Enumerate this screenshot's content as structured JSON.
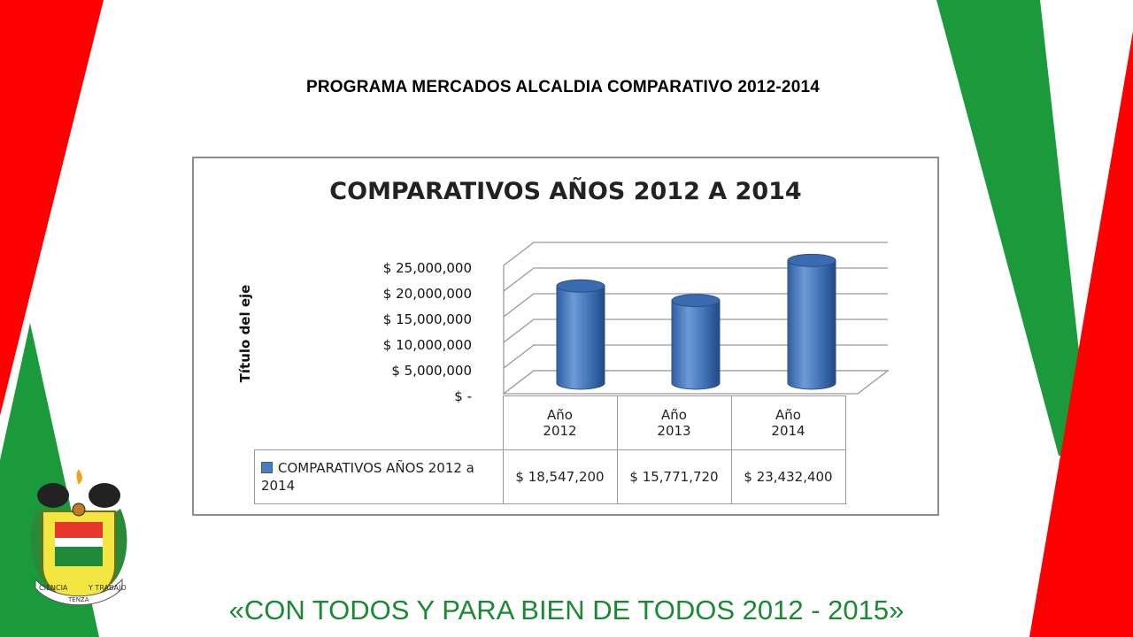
{
  "slide": {
    "title": "PROGRAMA MERCADOS ALCALDIA COMPARATIVO 2012-2014",
    "footer": "«CON TODOS Y PARA BIEN DE TODOS 2012 - 2015»",
    "colors": {
      "red": "#ff0000",
      "green": "#1a9a3a",
      "footer_green": "#1a8a32"
    }
  },
  "logo": {
    "icon": "municipal-coat-of-arms",
    "motto_left": "CIENCIA",
    "motto_right": "Y TRABAJO",
    "bottom_text": "TENZA"
  },
  "chart_data": {
    "type": "bar",
    "title": "COMPARATIVOS AÑOS 2012 A 2014",
    "ylabel": "Título del eje",
    "categories": [
      "Año\n2012",
      "Año\n2013",
      "Año\n2014"
    ],
    "categories_lines": [
      [
        "Año",
        "2012"
      ],
      [
        "Año",
        "2013"
      ],
      [
        "Año",
        "2014"
      ]
    ],
    "series": [
      {
        "name": "COMPARATIVOS AÑOS 2012 a 2014",
        "values": [
          18547200,
          15771720,
          23432400
        ],
        "labels": [
          "$ 18,547,200",
          "$ 15,771,720",
          "$ 23,432,400"
        ],
        "color": "#4a7cc0"
      }
    ],
    "yticks": [
      25000000,
      20000000,
      15000000,
      10000000,
      5000000,
      0
    ],
    "ytick_labels": [
      "$ 25,000,000",
      "$ 20,000,000",
      "$ 15,000,000",
      "$ 10,000,000",
      "$ 5,000,000",
      "$ -"
    ],
    "ylim": [
      0,
      25000000
    ],
    "grid": true,
    "style": "3d-cylinder",
    "data_table": true
  }
}
